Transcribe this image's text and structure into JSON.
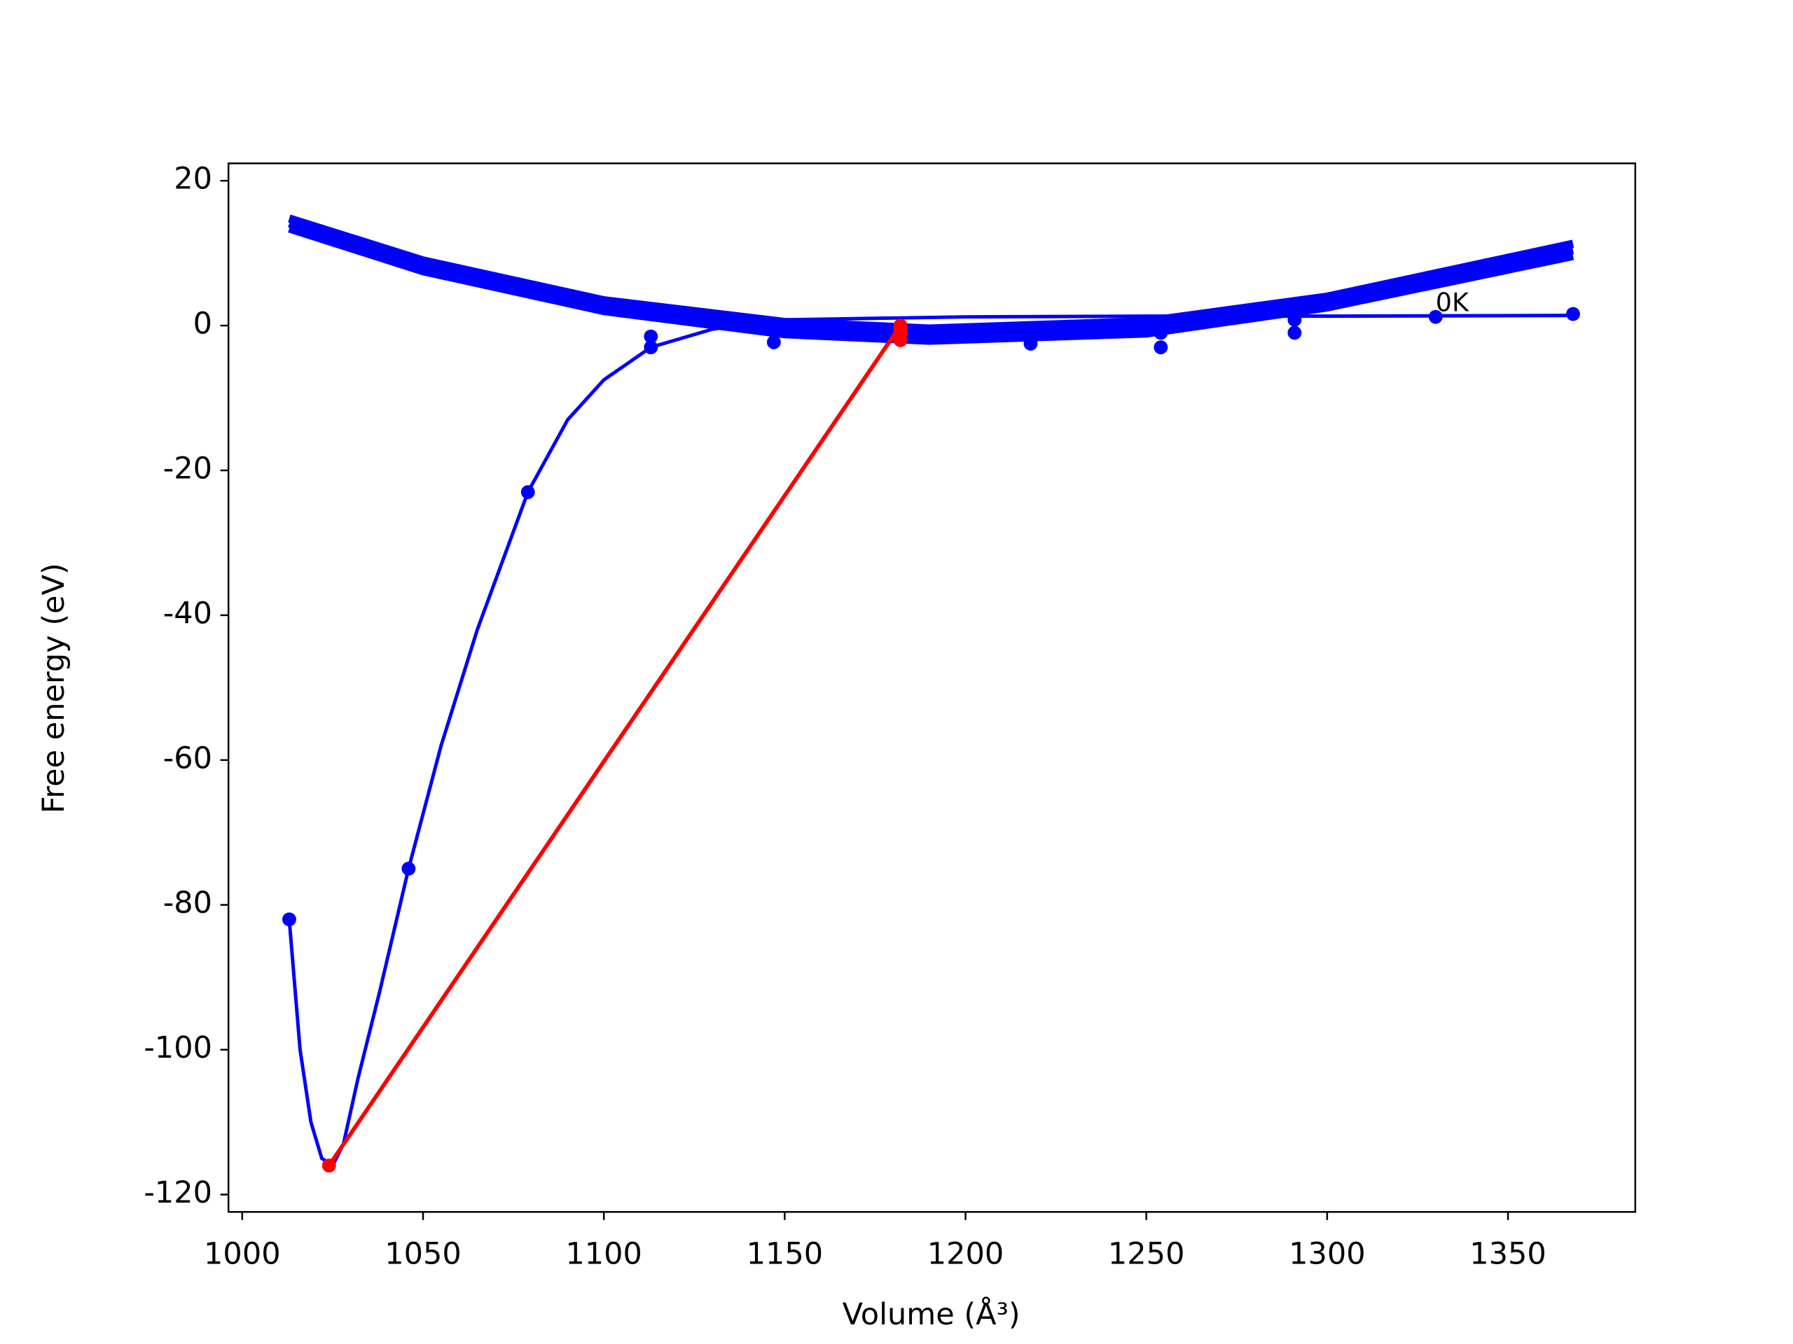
{
  "chart_data": {
    "type": "line",
    "xlabel": "Volume (Å³)",
    "ylabel": "Free energy (eV)",
    "xlim": [
      996.2,
      1385.2
    ],
    "ylim": [
      -122.4,
      22.4
    ],
    "xticks": [
      1000,
      1050,
      1100,
      1150,
      1200,
      1250,
      1300,
      1350
    ],
    "yticks": [
      -120,
      -100,
      -80,
      -60,
      -40,
      -20,
      0,
      20
    ],
    "grid": false,
    "annotations": [
      {
        "text": "0K",
        "x": 1330,
        "y": 3
      }
    ],
    "series": [
      {
        "color": "#0000ff",
        "linewidth": 3,
        "marker": false,
        "x": [
          1013,
          1016,
          1019,
          1022,
          1025,
          1028,
          1032,
          1038,
          1046,
          1055,
          1065,
          1079,
          1090,
          1100,
          1113,
          1130,
          1150,
          1200,
          1250,
          1300,
          1368
        ],
        "values": [
          -82,
          -100,
          -110,
          -115,
          -116,
          -113,
          -104,
          -92,
          -75,
          -58,
          -42,
          -23,
          -13,
          -7.5,
          -3,
          -0.5,
          0.8,
          1.2,
          1.3,
          1.3,
          1.4
        ]
      },
      {
        "color": "#0000ff",
        "linewidth": 0,
        "marker": true,
        "x": [
          1013,
          1046,
          1079,
          1113,
          1113,
          1147,
          1147,
          1182,
          1218,
          1254,
          1254,
          1291,
          1291,
          1330,
          1368
        ],
        "values": [
          -82,
          -75,
          -23,
          -3,
          -1.5,
          -2.3,
          0.2,
          -2,
          -2.5,
          -3,
          -1,
          -1,
          0.8,
          1.2,
          1.6
        ]
      },
      {
        "color": "#0000ff",
        "linewidth": 7,
        "marker": false,
        "x": [
          1013,
          1050,
          1100,
          1150,
          1190,
          1250,
          1300,
          1368
        ],
        "values": [
          14.8,
          9,
          3.5,
          0.5,
          -0.4,
          0.6,
          4,
          11.3
        ]
      },
      {
        "color": "#0000ff",
        "linewidth": 7,
        "marker": false,
        "x": [
          1013,
          1050,
          1100,
          1150,
          1190,
          1250,
          1300,
          1368
        ],
        "values": [
          14.1,
          8.2,
          2.7,
          -0.4,
          -1.3,
          -0.3,
          3.2,
          10.4
        ]
      },
      {
        "color": "#0000ff",
        "linewidth": 7,
        "marker": false,
        "x": [
          1013,
          1050,
          1100,
          1150,
          1190,
          1250,
          1300,
          1368
        ],
        "values": [
          13.4,
          7.5,
          2,
          -1.2,
          -2.1,
          -1.1,
          2.5,
          9.6
        ]
      },
      {
        "color": "#ff0000",
        "linewidth": 3.5,
        "marker": true,
        "x": [
          1024,
          1182
        ],
        "values": [
          -116,
          0
        ]
      },
      {
        "color": "#ff0000",
        "linewidth": 0,
        "marker": true,
        "x": [
          1182,
          1182,
          1182
        ],
        "values": [
          -2,
          -1,
          -0.3
        ]
      }
    ]
  }
}
